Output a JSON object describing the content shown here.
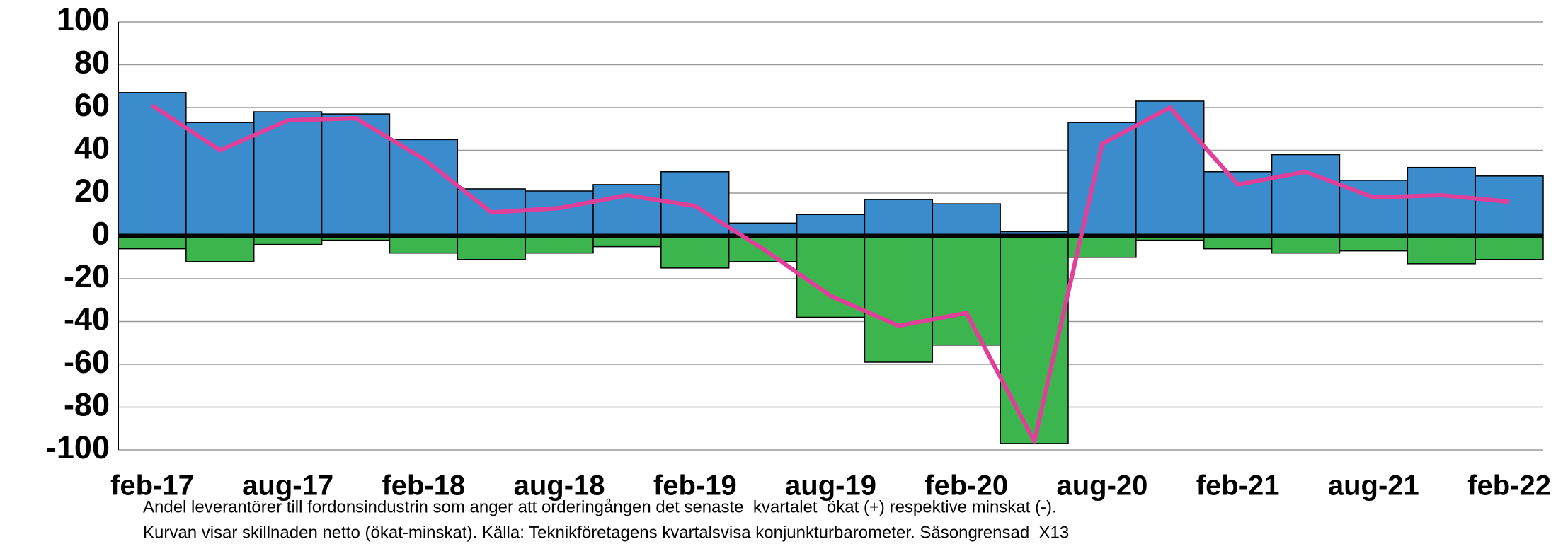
{
  "chart_data": {
    "type": "bar",
    "categories": [
      "feb-17",
      null,
      "aug-17",
      null,
      "feb-18",
      null,
      "aug-18",
      null,
      "feb-19",
      null,
      "aug-19",
      null,
      "feb-20",
      null,
      "aug-20",
      null,
      "feb-21",
      null,
      "aug-21",
      null,
      "feb-22"
    ],
    "series": [
      {
        "type": "bar",
        "color": "#3a8ccc",
        "values": [
          67,
          53,
          58,
          57,
          45,
          22,
          21,
          24,
          30,
          6,
          10,
          17,
          15,
          2,
          53,
          63,
          30,
          38,
          26,
          32,
          28
        ]
      },
      {
        "type": "bar",
        "color": "#3cb54e",
        "values": [
          -6,
          -12,
          -4,
          -2,
          -8,
          -11,
          -8,
          -5,
          -15,
          -12,
          -38,
          -59,
          -51,
          -97,
          -10,
          -2,
          -6,
          -8,
          -7,
          -13,
          -11
        ]
      },
      {
        "type": "line",
        "color": "#e0409a",
        "values": [
          61,
          40,
          54,
          55,
          36,
          11,
          13,
          19,
          14,
          -6,
          -28,
          -42,
          -36,
          -96,
          43,
          60,
          24,
          30,
          18,
          19,
          16
        ]
      }
    ],
    "ylim": [
      -100,
      100
    ],
    "yticks": [
      -100,
      -80,
      -60,
      -40,
      -20,
      0,
      20,
      40,
      60,
      80,
      100
    ],
    "grid": true,
    "notes": [
      "Andel leverantörer till fordonsindustrin som anger att orderingången det senaste  kvartalet  ökat (+) respektive minskat (-).",
      "Kurvan visar skillnaden netto (ökat-minskat). Källa: Teknikföretagens kvartalsvisa konjunkturbarometer. Säsongrensad  X13"
    ]
  }
}
